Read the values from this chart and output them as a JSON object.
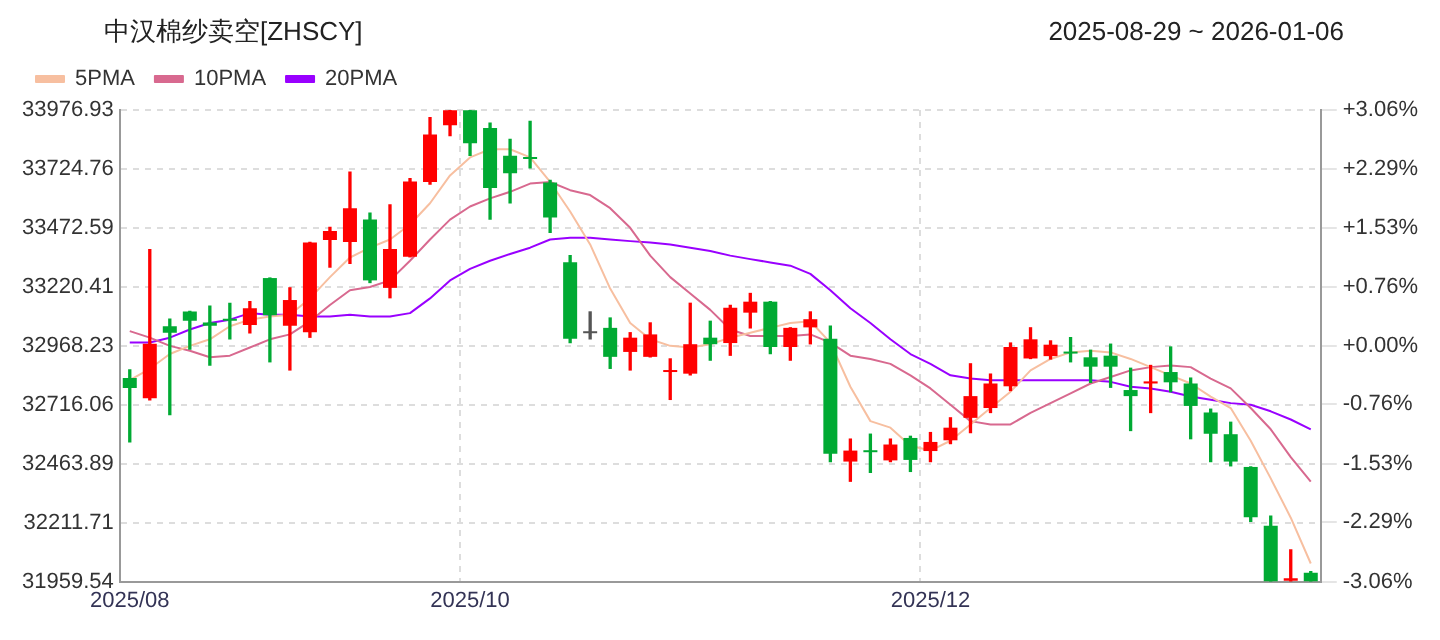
{
  "chart_data": {
    "type": "candlestick",
    "title": "中汉棉纱卖空[ZHSCY]",
    "subtitle": "2025-08-29 ~ 2026-01-06",
    "categories": [
      "2025/08",
      null,
      null,
      null,
      null,
      null,
      null,
      null,
      null,
      null,
      null,
      null,
      null,
      null,
      null,
      null,
      null,
      "2025/10",
      null,
      null,
      null,
      null,
      null,
      null,
      null,
      null,
      null,
      null,
      null,
      null,
      null,
      null,
      null,
      null,
      null,
      null,
      null,
      null,
      null,
      null,
      "2025/12",
      null,
      null,
      null,
      null,
      null,
      null,
      null,
      null,
      null,
      null,
      null,
      null,
      null,
      null,
      null,
      null,
      null,
      null,
      null
    ],
    "ohlc": [
      [
        32830,
        32865,
        32557,
        32788
      ],
      [
        32744,
        33379,
        32737,
        32977
      ],
      [
        33052,
        33082,
        32674,
        33024
      ],
      [
        33115,
        33115,
        32954,
        33075
      ],
      [
        33068,
        33138,
        32886,
        33054
      ],
      [
        33082,
        33150,
        32998,
        33075
      ],
      [
        33057,
        33157,
        33024,
        33129
      ],
      [
        33258,
        33258,
        32900,
        33099
      ],
      [
        33054,
        33216,
        32865,
        33164
      ],
      [
        33026,
        33410,
        33005,
        33410
      ],
      [
        33421,
        33475,
        33305,
        33459
      ],
      [
        33412,
        33711,
        33321,
        33557
      ],
      [
        33508,
        33536,
        33239,
        33248
      ],
      [
        33216,
        33571,
        33174,
        33382
      ],
      [
        33349,
        33683,
        33349,
        33671
      ],
      [
        33669,
        33944,
        33660,
        33872
      ],
      [
        33912,
        33976,
        33867,
        33976
      ],
      [
        33976,
        33976,
        33783,
        33835
      ],
      [
        33900,
        33921,
        33510,
        33643
      ],
      [
        33781,
        33851,
        33580,
        33706
      ],
      [
        33772,
        33928,
        33730,
        33767
      ],
      [
        33667,
        33676,
        33454,
        33517
      ],
      [
        33326,
        33354,
        32982,
        32998
      ],
      [
        33022,
        33113,
        32998,
        33022
      ],
      [
        33045,
        33087,
        32872,
        32921
      ],
      [
        32942,
        33024,
        32865,
        33003
      ],
      [
        32921,
        33066,
        32921,
        33017
      ],
      [
        32856,
        32912,
        32739,
        32860
      ],
      [
        32849,
        33150,
        32844,
        32975
      ],
      [
        33003,
        33073,
        32907,
        32975
      ],
      [
        32980,
        33141,
        32928,
        33131
      ],
      [
        33110,
        33192,
        33045,
        33157
      ],
      [
        33157,
        33157,
        32935,
        32963
      ],
      [
        32963,
        33045,
        32907,
        33045
      ],
      [
        33047,
        33113,
        32977,
        33082
      ],
      [
        32998,
        33052,
        32473,
        32506
      ],
      [
        32473,
        32569,
        32389,
        32520
      ],
      [
        32518,
        32590,
        32427,
        32513
      ],
      [
        32478,
        32569,
        32473,
        32546
      ],
      [
        32574,
        32581,
        32431,
        32480
      ],
      [
        32518,
        32597,
        32473,
        32557
      ],
      [
        32564,
        32660,
        32550,
        32618
      ],
      [
        32660,
        32891,
        32597,
        32753
      ],
      [
        32702,
        32847,
        32683,
        32807
      ],
      [
        32795,
        32980,
        32777,
        32963
      ],
      [
        32914,
        33045,
        32914,
        32996
      ],
      [
        32924,
        32989,
        32912,
        32973
      ],
      [
        32940,
        33003,
        32900,
        32935
      ],
      [
        32919,
        32949,
        32812,
        32879
      ],
      [
        32926,
        32975,
        32791,
        32879
      ],
      [
        32779,
        32872,
        32606,
        32753
      ],
      [
        32807,
        32884,
        32683,
        32816
      ],
      [
        32856,
        32963,
        32772,
        32812
      ],
      [
        32807,
        32830,
        32571,
        32711
      ],
      [
        32683,
        32697,
        32473,
        32592
      ],
      [
        32590,
        32641,
        32455,
        32473
      ],
      [
        32450,
        32450,
        32217,
        32235
      ],
      [
        32198,
        32240,
        31960,
        31960
      ],
      [
        31963,
        32095,
        31960,
        31974
      ],
      [
        31997,
        32002,
        31960,
        31960
      ]
    ],
    "colors": [
      "#00aa33",
      "#ff0000",
      "#00aa33",
      "#00aa33",
      "#00aa33",
      "#00aa33",
      "#ff0000",
      "#00aa33",
      "#ff0000",
      "#ff0000",
      "#ff0000",
      "#ff0000",
      "#00aa33",
      "#ff0000",
      "#ff0000",
      "#ff0000",
      "#ff0000",
      "#00aa33",
      "#00aa33",
      "#00aa33",
      "#00aa33",
      "#00aa33",
      "#00aa33",
      "#555555",
      "#00aa33",
      "#ff0000",
      "#ff0000",
      "#ff0000",
      "#ff0000",
      "#00aa33",
      "#ff0000",
      "#ff0000",
      "#00aa33",
      "#ff0000",
      "#ff0000",
      "#00aa33",
      "#ff0000",
      "#00aa33",
      "#ff0000",
      "#00aa33",
      "#ff0000",
      "#ff0000",
      "#ff0000",
      "#ff0000",
      "#ff0000",
      "#ff0000",
      "#ff0000",
      "#00aa33",
      "#00aa33",
      "#00aa33",
      "#00aa33",
      "#ff0000",
      "#00aa33",
      "#00aa33",
      "#00aa33",
      "#00aa33",
      "#00aa33",
      "#00aa33",
      "#ff0000",
      "#00aa33"
    ],
    "series": [
      {
        "name": "5PMA",
        "type": "line",
        "color": "#f7bfa0",
        "values": [
          32821,
          32870,
          32933,
          32968,
          32996,
          33052,
          33080,
          33094,
          33101,
          33171,
          33262,
          33346,
          33388,
          33423,
          33487,
          33578,
          33697,
          33774,
          33809,
          33809,
          33774,
          33669,
          33543,
          33402,
          33213,
          33066,
          32996,
          32968,
          32961,
          32975,
          33003,
          33024,
          33045,
          33066,
          33073,
          32982,
          32793,
          32646,
          32618,
          32541,
          32520,
          32562,
          32632,
          32702,
          32772,
          32863,
          32912,
          32940,
          32947,
          32940,
          32912,
          32877,
          32842,
          32807,
          32751,
          32702,
          32562,
          32401,
          32233,
          32037
        ]
      },
      {
        "name": "10PMA",
        "type": "line",
        "color": "#d8698f",
        "values": [
          33031,
          33003,
          32968,
          32947,
          32919,
          32926,
          32961,
          32996,
          33017,
          33073,
          33143,
          33206,
          33220,
          33248,
          33332,
          33423,
          33508,
          33564,
          33599,
          33627,
          33662,
          33669,
          33634,
          33613,
          33557,
          33473,
          33354,
          33262,
          33192,
          33122,
          33038,
          33010,
          33010,
          33010,
          33017,
          32982,
          32926,
          32912,
          32891,
          32842,
          32786,
          32716,
          32646,
          32632,
          32632,
          32681,
          32723,
          32765,
          32807,
          32835,
          32863,
          32877,
          32884,
          32877,
          32828,
          32786,
          32702,
          32611,
          32492,
          32387
        ]
      },
      {
        "name": "20PMA",
        "type": "line",
        "color": "#9900ff",
        "values": [
          32982,
          32982,
          33003,
          33038,
          33066,
          33080,
          33108,
          33101,
          33101,
          33094,
          33094,
          33101,
          33094,
          33094,
          33108,
          33171,
          33248,
          33297,
          33332,
          33361,
          33388,
          33423,
          33430,
          33430,
          33423,
          33416,
          33410,
          33402,
          33388,
          33374,
          33354,
          33339,
          33325,
          33311,
          33276,
          33206,
          33129,
          33066,
          32996,
          32933,
          32891,
          32842,
          32828,
          32821,
          32821,
          32821,
          32821,
          32821,
          32821,
          32814,
          32793,
          32786,
          32772,
          32751,
          32737,
          32723,
          32716,
          32688,
          32653,
          32611
        ]
      }
    ],
    "ylim": [
      31959.54,
      33976.93
    ],
    "yticks": [
      31959.54,
      32211.71,
      32463.89,
      32716.06,
      32968.23,
      33220.41,
      33472.59,
      33724.76,
      33976.93
    ],
    "y2lim": [
      -3.06,
      3.06
    ],
    "y2ticks": [
      {
        "value": -3.06,
        "label": "-3.06%"
      },
      {
        "value": -2.29,
        "label": "-2.29%"
      },
      {
        "value": -1.53,
        "label": "-1.53%"
      },
      {
        "value": -0.76,
        "label": "-0.76%"
      },
      {
        "value": 0,
        "label": "+0.00%"
      },
      {
        "value": 0.76,
        "label": "+0.76%"
      },
      {
        "value": 1.53,
        "label": "+1.53%"
      },
      {
        "value": 2.29,
        "label": "+2.29%"
      },
      {
        "value": 3.06,
        "label": "+3.06%"
      }
    ],
    "grid": true,
    "legend": "top left",
    "marker": "none"
  }
}
